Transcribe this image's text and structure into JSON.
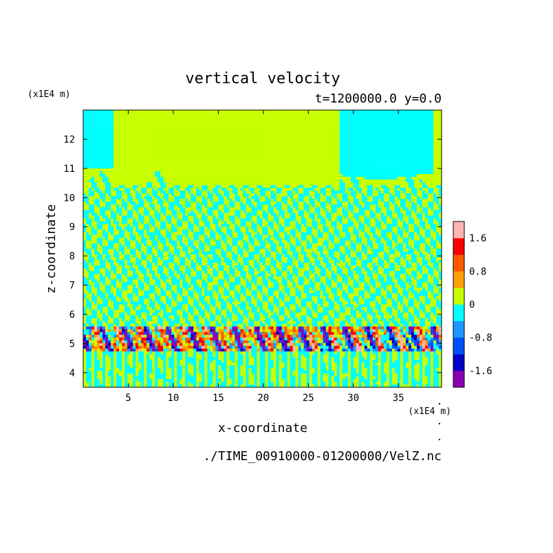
{
  "chart_data": {
    "type": "heatmap",
    "title": "vertical velocity",
    "subtitle": "t=1200000.0 y=0.0",
    "xlabel": "x-coordinate",
    "ylabel": "z-coordinate",
    "x_unit": "(x1E4 m)",
    "y_unit": "(x1E4 m)",
    "xlim": [
      0,
      39.8
    ],
    "ylim": [
      3.5,
      13.0
    ],
    "x_ticks": [
      5,
      10,
      15,
      20,
      25,
      30,
      35
    ],
    "y_ticks": [
      4,
      5,
      6,
      7,
      8,
      9,
      10,
      11,
      12
    ],
    "source_file": "./TIME_00910000-01200000/VelZ.nc",
    "colorbar": {
      "levels": [
        -2.0,
        -1.6,
        -1.2,
        -0.8,
        -0.4,
        0,
        0.4,
        0.8,
        1.2,
        1.6,
        2.0
      ],
      "colors": [
        "#8c00b4",
        "#0000c8",
        "#0050ff",
        "#1e96ff",
        "#00ffff",
        "#c8ff00",
        "#ffa000",
        "#ff5a00",
        "#ff0000",
        "#ffb4b4"
      ],
      "tick_labels": [
        "-1.6",
        "-0.8",
        "0",
        "0.8",
        "1.6"
      ],
      "tick_values": [
        -1.6,
        -0.8,
        0,
        0.8,
        1.6
      ]
    },
    "regions": [
      {
        "description": "upper quiescent zone, mostly weak updraft with large downdraft patches",
        "z_range": [
          10.5,
          13.0
        ],
        "value": 0.2
      },
      {
        "description": "fine banded gravity-wave pattern, near zero alternating",
        "z_range": [
          5.6,
          10.5
        ],
        "value": 0.0
      },
      {
        "description": "strong convective layer with mixed up/down drafts",
        "z_range": [
          4.8,
          5.6
        ],
        "value": 1.2
      },
      {
        "description": "lower layer banded near zero",
        "z_range": [
          3.5,
          4.8
        ],
        "value": 0.0
      }
    ]
  }
}
